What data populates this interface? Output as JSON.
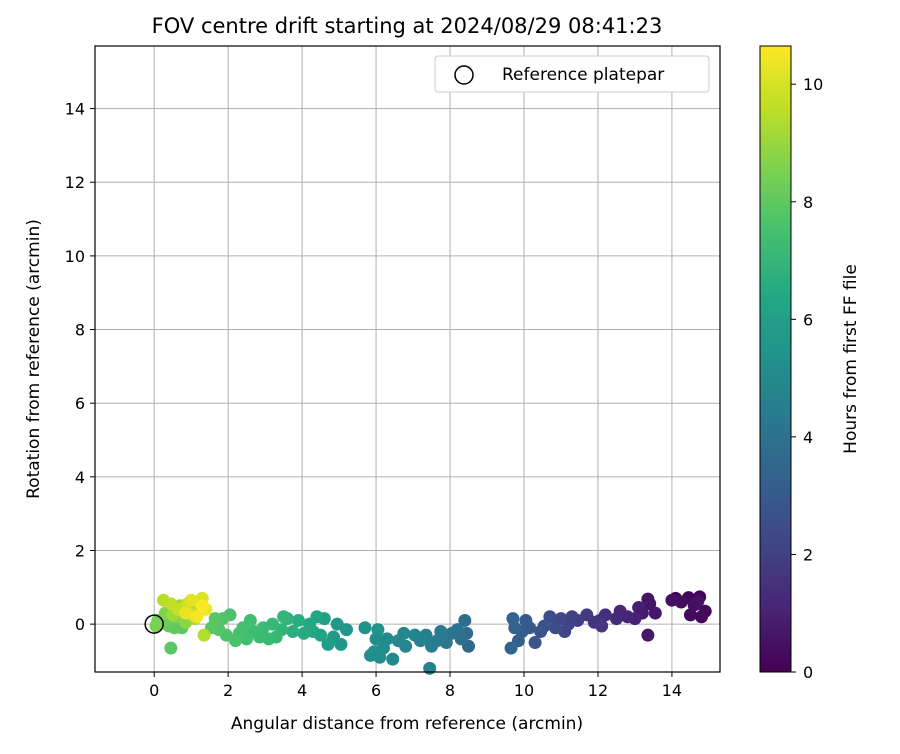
{
  "chart_data": {
    "type": "scatter",
    "title": "FOV centre drift starting at 2024/08/29 08:41:23",
    "xlabel": "Angular distance from reference (arcmin)",
    "ylabel": "Rotation from reference (arcmin)",
    "xlim": [
      -1.6,
      15.3
    ],
    "ylim": [
      -1.3,
      15.7
    ],
    "xticks": [
      0,
      2,
      4,
      6,
      8,
      10,
      12,
      14
    ],
    "yticks": [
      0,
      2,
      4,
      6,
      8,
      10,
      12,
      14
    ],
    "grid": true,
    "legend": {
      "placement": "top-right",
      "entries": [
        "Reference platepar"
      ]
    },
    "colorbar": {
      "label": "Hours from first FF file",
      "range": [
        0,
        10.65
      ],
      "ticks": [
        0,
        2,
        4,
        6,
        8,
        10
      ],
      "colormap": "viridis"
    },
    "reference_point": {
      "x": 0,
      "y": 0
    },
    "points": [
      {
        "x": 14.1,
        "y": 0.7,
        "h": 0.05
      },
      {
        "x": 14.45,
        "y": 0.72,
        "h": 0.1
      },
      {
        "x": 14.75,
        "y": 0.74,
        "h": 0.15
      },
      {
        "x": 14.9,
        "y": 0.35,
        "h": 0.2
      },
      {
        "x": 14.8,
        "y": 0.2,
        "h": 0.25
      },
      {
        "x": 14.5,
        "y": 0.25,
        "h": 0.3
      },
      {
        "x": 14.25,
        "y": 0.6,
        "h": 0.35
      },
      {
        "x": 14.6,
        "y": 0.52,
        "h": 0.4
      },
      {
        "x": 14.0,
        "y": 0.65,
        "h": 0.45
      },
      {
        "x": 14.7,
        "y": 0.62,
        "h": 0.5
      },
      {
        "x": 13.35,
        "y": 0.68,
        "h": 0.55
      },
      {
        "x": 13.4,
        "y": 0.55,
        "h": 0.6
      },
      {
        "x": 13.55,
        "y": 0.3,
        "h": 0.65
      },
      {
        "x": 13.35,
        "y": -0.3,
        "h": 0.7
      },
      {
        "x": 13.2,
        "y": 0.3,
        "h": 0.8
      },
      {
        "x": 13.1,
        "y": 0.45,
        "h": 0.9
      },
      {
        "x": 13.0,
        "y": 0.15,
        "h": 1.0
      },
      {
        "x": 12.8,
        "y": 0.2,
        "h": 1.1
      },
      {
        "x": 12.6,
        "y": 0.35,
        "h": 1.2
      },
      {
        "x": 12.5,
        "y": 0.15,
        "h": 1.3
      },
      {
        "x": 12.2,
        "y": 0.25,
        "h": 1.4
      },
      {
        "x": 12.05,
        "y": 0.1,
        "h": 1.5
      },
      {
        "x": 11.9,
        "y": 0.05,
        "h": 1.6
      },
      {
        "x": 12.1,
        "y": -0.05,
        "h": 1.7
      },
      {
        "x": 11.7,
        "y": 0.25,
        "h": 1.8
      },
      {
        "x": 11.45,
        "y": 0.1,
        "h": 1.9
      },
      {
        "x": 11.3,
        "y": 0.2,
        "h": 2.0
      },
      {
        "x": 11.2,
        "y": 0.0,
        "h": 2.1
      },
      {
        "x": 11.1,
        "y": -0.2,
        "h": 2.2
      },
      {
        "x": 11.0,
        "y": 0.15,
        "h": 2.3
      },
      {
        "x": 10.85,
        "y": -0.1,
        "h": 2.4
      },
      {
        "x": 10.7,
        "y": 0.2,
        "h": 2.5
      },
      {
        "x": 10.55,
        "y": -0.05,
        "h": 2.6
      },
      {
        "x": 10.45,
        "y": -0.2,
        "h": 2.7
      },
      {
        "x": 10.3,
        "y": -0.5,
        "h": 2.8
      },
      {
        "x": 10.15,
        "y": -0.1,
        "h": 2.9
      },
      {
        "x": 10.05,
        "y": 0.1,
        "h": 3.0
      },
      {
        "x": 9.95,
        "y": -0.2,
        "h": 3.1
      },
      {
        "x": 9.85,
        "y": -0.45,
        "h": 3.2
      },
      {
        "x": 9.75,
        "y": -0.1,
        "h": 3.3
      },
      {
        "x": 9.7,
        "y": 0.15,
        "h": 3.4
      },
      {
        "x": 9.65,
        "y": -0.65,
        "h": 3.5
      },
      {
        "x": 8.5,
        "y": -0.6,
        "h": 3.6
      },
      {
        "x": 8.45,
        "y": -0.25,
        "h": 3.7
      },
      {
        "x": 8.4,
        "y": 0.1,
        "h": 3.8
      },
      {
        "x": 8.3,
        "y": -0.4,
        "h": 3.9
      },
      {
        "x": 8.2,
        "y": -0.15,
        "h": 4.0
      },
      {
        "x": 8.05,
        "y": -0.25,
        "h": 4.1
      },
      {
        "x": 7.9,
        "y": -0.5,
        "h": 4.2
      },
      {
        "x": 7.75,
        "y": -0.2,
        "h": 4.3
      },
      {
        "x": 7.65,
        "y": -0.45,
        "h": 4.4
      },
      {
        "x": 7.5,
        "y": -0.6,
        "h": 4.5
      },
      {
        "x": 7.45,
        "y": -1.2,
        "h": 4.55
      },
      {
        "x": 7.35,
        "y": -0.3,
        "h": 4.6
      },
      {
        "x": 7.2,
        "y": -0.45,
        "h": 4.7
      },
      {
        "x": 7.05,
        "y": -0.3,
        "h": 4.8
      },
      {
        "x": 6.8,
        "y": -0.6,
        "h": 4.85
      },
      {
        "x": 6.75,
        "y": -0.25,
        "h": 4.9
      },
      {
        "x": 6.6,
        "y": -0.45,
        "h": 4.95
      },
      {
        "x": 6.45,
        "y": -0.95,
        "h": 5.0
      },
      {
        "x": 6.3,
        "y": -0.4,
        "h": 5.05
      },
      {
        "x": 6.2,
        "y": -0.65,
        "h": 5.1
      },
      {
        "x": 6.1,
        "y": -0.9,
        "h": 5.15
      },
      {
        "x": 6.0,
        "y": -0.4,
        "h": 5.2
      },
      {
        "x": 5.95,
        "y": -0.75,
        "h": 5.25
      },
      {
        "x": 5.85,
        "y": -0.85,
        "h": 5.3
      },
      {
        "x": 6.05,
        "y": -0.15,
        "h": 5.35
      },
      {
        "x": 5.7,
        "y": -0.1,
        "h": 5.4
      },
      {
        "x": 5.2,
        "y": -0.15,
        "h": 5.5
      },
      {
        "x": 5.05,
        "y": -0.55,
        "h": 5.6
      },
      {
        "x": 4.95,
        "y": 0.0,
        "h": 5.7
      },
      {
        "x": 4.85,
        "y": -0.35,
        "h": 5.8
      },
      {
        "x": 4.7,
        "y": -0.55,
        "h": 5.9
      },
      {
        "x": 4.6,
        "y": 0.15,
        "h": 6.0
      },
      {
        "x": 4.5,
        "y": -0.3,
        "h": 6.1
      },
      {
        "x": 4.4,
        "y": 0.2,
        "h": 6.2
      },
      {
        "x": 4.3,
        "y": -0.2,
        "h": 6.3
      },
      {
        "x": 4.2,
        "y": 0.0,
        "h": 6.4
      },
      {
        "x": 4.05,
        "y": -0.25,
        "h": 6.5
      },
      {
        "x": 3.9,
        "y": 0.1,
        "h": 6.6
      },
      {
        "x": 3.75,
        "y": -0.2,
        "h": 6.7
      },
      {
        "x": 3.6,
        "y": 0.15,
        "h": 6.8
      },
      {
        "x": 3.45,
        "y": -0.15,
        "h": 6.9
      },
      {
        "x": 3.5,
        "y": 0.2,
        "h": 7.0
      },
      {
        "x": 3.3,
        "y": -0.35,
        "h": 7.05
      },
      {
        "x": 3.2,
        "y": 0.0,
        "h": 7.1
      },
      {
        "x": 3.1,
        "y": -0.4,
        "h": 7.15
      },
      {
        "x": 2.95,
        "y": -0.1,
        "h": 7.2
      },
      {
        "x": 2.85,
        "y": -0.35,
        "h": 7.25
      },
      {
        "x": 2.7,
        "y": -0.2,
        "h": 7.3
      },
      {
        "x": 2.6,
        "y": 0.1,
        "h": 7.35
      },
      {
        "x": 2.5,
        "y": -0.4,
        "h": 7.4
      },
      {
        "x": 2.4,
        "y": -0.1,
        "h": 7.45
      },
      {
        "x": 2.3,
        "y": -0.25,
        "h": 7.5
      },
      {
        "x": 2.2,
        "y": -0.45,
        "h": 7.55
      },
      {
        "x": 2.05,
        "y": 0.25,
        "h": 7.6
      },
      {
        "x": 1.95,
        "y": -0.3,
        "h": 7.65
      },
      {
        "x": 1.85,
        "y": 0.15,
        "h": 7.7
      },
      {
        "x": 1.75,
        "y": -0.15,
        "h": 7.75
      },
      {
        "x": 1.65,
        "y": 0.15,
        "h": 7.8
      },
      {
        "x": 1.55,
        "y": -0.1,
        "h": 7.85
      },
      {
        "x": 0.45,
        "y": -0.65,
        "h": 7.9
      },
      {
        "x": 0.75,
        "y": -0.1,
        "h": 7.95
      },
      {
        "x": 0.55,
        "y": -0.1,
        "h": 8.0
      },
      {
        "x": 0.4,
        "y": -0.05,
        "h": 8.1
      },
      {
        "x": 0.35,
        "y": 0.1,
        "h": 8.2
      },
      {
        "x": 0.2,
        "y": 0.05,
        "h": 8.3
      },
      {
        "x": 0.1,
        "y": 0.1,
        "h": 8.4
      },
      {
        "x": 0.05,
        "y": -0.05,
        "h": 8.5
      },
      {
        "x": 0.3,
        "y": 0.3,
        "h": 8.6
      },
      {
        "x": 0.6,
        "y": 0.2,
        "h": 8.7
      },
      {
        "x": 0.85,
        "y": 0.05,
        "h": 8.8
      },
      {
        "x": 0.95,
        "y": 0.35,
        "h": 8.9
      },
      {
        "x": 0.7,
        "y": 0.5,
        "h": 9.0
      },
      {
        "x": 0.5,
        "y": 0.25,
        "h": 9.1
      },
      {
        "x": 1.1,
        "y": 0.15,
        "h": 9.2
      },
      {
        "x": 1.25,
        "y": 0.4,
        "h": 9.3
      },
      {
        "x": 1.35,
        "y": -0.3,
        "h": 9.4
      },
      {
        "x": 0.25,
        "y": 0.65,
        "h": 9.5
      },
      {
        "x": 0.45,
        "y": 0.55,
        "h": 9.6
      },
      {
        "x": 0.65,
        "y": 0.4,
        "h": 9.7
      },
      {
        "x": 0.9,
        "y": 0.55,
        "h": 9.8
      },
      {
        "x": 1.05,
        "y": 0.25,
        "h": 9.9
      },
      {
        "x": 1.2,
        "y": 0.6,
        "h": 10.0
      },
      {
        "x": 1.3,
        "y": 0.7,
        "h": 10.1
      },
      {
        "x": 1.0,
        "y": 0.65,
        "h": 10.2
      },
      {
        "x": 0.85,
        "y": 0.3,
        "h": 10.3
      },
      {
        "x": 1.4,
        "y": 0.4,
        "h": 10.4
      },
      {
        "x": 1.15,
        "y": 0.2,
        "h": 10.5
      },
      {
        "x": 1.3,
        "y": 0.5,
        "h": 10.6
      }
    ]
  }
}
